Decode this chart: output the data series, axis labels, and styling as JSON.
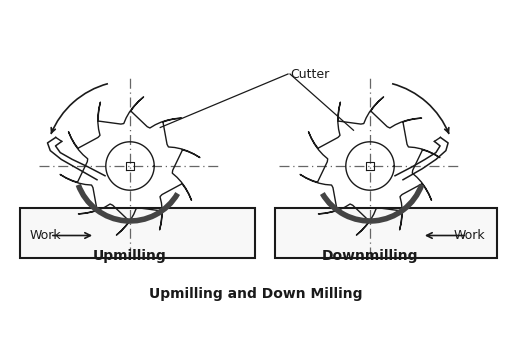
{
  "bg_color": "#ffffff",
  "title": "Upmilling and Down Milling",
  "label_up": "Upmilling",
  "label_down": "Downmilling",
  "cutter_label": "Cutter",
  "work_label": "Work",
  "title_fontsize": 10,
  "label_fontsize": 10,
  "text_fontsize": 9,
  "line_color": "#1a1a1a",
  "dash_color": "#666666",
  "contact_color": "#444444"
}
